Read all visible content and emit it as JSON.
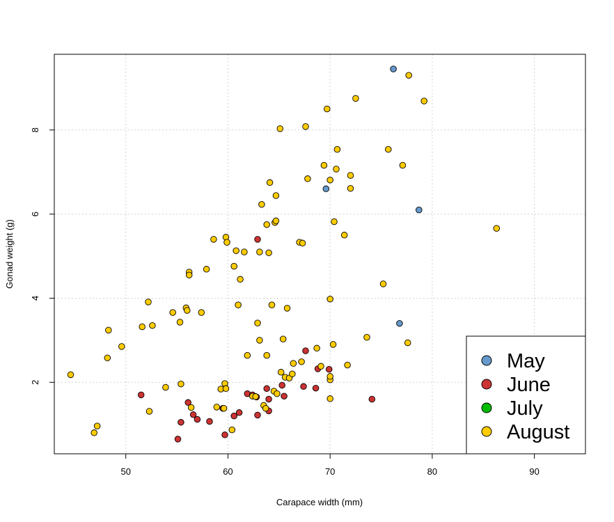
{
  "chart_data": {
    "type": "scatter",
    "title": "",
    "xlabel": "Carapace width (mm)",
    "ylabel": "Gonad weight (g)",
    "xlim": [
      43,
      95
    ],
    "ylim": [
      0.3,
      9.8
    ],
    "xticks": [
      50,
      60,
      70,
      80,
      90
    ],
    "yticks": [
      2,
      4,
      6,
      8
    ],
    "grid": true,
    "legend_position": "bottom-right",
    "series": [
      {
        "name": "May",
        "color": "#6699cc",
        "points": [
          [
            76.2,
            9.45
          ],
          [
            69.6,
            6.6
          ],
          [
            78.7,
            6.1
          ],
          [
            76.8,
            3.4
          ]
        ]
      },
      {
        "name": "June",
        "color": "#cc3333",
        "points": [
          [
            51.5,
            1.7
          ],
          [
            55.1,
            0.65
          ],
          [
            55.4,
            1.05
          ],
          [
            56.1,
            1.52
          ],
          [
            56.6,
            1.23
          ],
          [
            57.0,
            1.12
          ],
          [
            58.2,
            1.07
          ],
          [
            59.5,
            1.38
          ],
          [
            59.7,
            0.75
          ],
          [
            60.6,
            1.2
          ],
          [
            61.1,
            1.28
          ],
          [
            61.9,
            1.73
          ],
          [
            62.4,
            1.7
          ],
          [
            62.8,
            1.65
          ],
          [
            62.9,
            5.4
          ],
          [
            62.9,
            1.22
          ],
          [
            63.8,
            1.85
          ],
          [
            64.0,
            1.6
          ],
          [
            64.0,
            1.32
          ],
          [
            65.3,
            1.93
          ],
          [
            65.5,
            1.67
          ],
          [
            67.4,
            1.9
          ],
          [
            67.6,
            2.75
          ],
          [
            68.6,
            1.86
          ],
          [
            68.8,
            2.32
          ],
          [
            69.9,
            2.31
          ],
          [
            74.1,
            1.6
          ]
        ]
      },
      {
        "name": "July",
        "color": "#00bb00",
        "points": []
      },
      {
        "name": "August",
        "color": "#ffcc00",
        "points": [
          [
            44.6,
            2.18
          ],
          [
            46.9,
            0.8
          ],
          [
            47.2,
            0.96
          ],
          [
            48.2,
            2.58
          ],
          [
            48.3,
            3.24
          ],
          [
            49.6,
            2.85
          ],
          [
            51.6,
            3.32
          ],
          [
            52.2,
            3.91
          ],
          [
            52.3,
            1.31
          ],
          [
            52.6,
            3.35
          ],
          [
            53.9,
            1.88
          ],
          [
            54.6,
            3.66
          ],
          [
            55.3,
            3.43
          ],
          [
            55.4,
            1.96
          ],
          [
            55.9,
            3.77
          ],
          [
            56.0,
            3.71
          ],
          [
            56.2,
            4.62
          ],
          [
            56.2,
            4.55
          ],
          [
            56.4,
            1.4
          ],
          [
            57.4,
            3.66
          ],
          [
            57.9,
            4.69
          ],
          [
            58.6,
            5.4
          ],
          [
            58.9,
            1.41
          ],
          [
            59.3,
            1.84
          ],
          [
            59.6,
            1.38
          ],
          [
            59.7,
            1.97
          ],
          [
            59.8,
            1.85
          ],
          [
            59.8,
            5.45
          ],
          [
            59.9,
            5.33
          ],
          [
            60.4,
            0.87
          ],
          [
            60.6,
            4.76
          ],
          [
            60.8,
            5.13
          ],
          [
            61.0,
            3.84
          ],
          [
            61.2,
            4.45
          ],
          [
            61.6,
            5.1
          ],
          [
            61.9,
            2.64
          ],
          [
            62.4,
            1.67
          ],
          [
            62.7,
            1.66
          ],
          [
            62.9,
            3.41
          ],
          [
            63.1,
            5.1
          ],
          [
            63.1,
            3.0
          ],
          [
            63.3,
            6.23
          ],
          [
            63.5,
            1.45
          ],
          [
            63.7,
            1.38
          ],
          [
            63.8,
            2.64
          ],
          [
            63.8,
            5.75
          ],
          [
            64.0,
            5.08
          ],
          [
            64.1,
            6.75
          ],
          [
            64.3,
            3.84
          ],
          [
            64.5,
            1.79
          ],
          [
            64.6,
            5.8
          ],
          [
            64.7,
            5.84
          ],
          [
            64.7,
            6.44
          ],
          [
            64.8,
            1.73
          ],
          [
            65.1,
            8.03
          ],
          [
            65.2,
            2.24
          ],
          [
            65.4,
            3.03
          ],
          [
            65.6,
            2.12
          ],
          [
            65.8,
            3.76
          ],
          [
            66.0,
            2.1
          ],
          [
            66.3,
            2.2
          ],
          [
            66.4,
            2.45
          ],
          [
            67.0,
            5.33
          ],
          [
            67.2,
            2.49
          ],
          [
            67.3,
            5.31
          ],
          [
            67.6,
            8.08
          ],
          [
            67.8,
            6.84
          ],
          [
            68.7,
            2.81
          ],
          [
            69.1,
            2.38
          ],
          [
            69.4,
            7.16
          ],
          [
            69.7,
            8.5
          ],
          [
            70.0,
            2.06
          ],
          [
            70.0,
            2.14
          ],
          [
            70.0,
            6.81
          ],
          [
            70.0,
            3.98
          ],
          [
            70.0,
            1.61
          ],
          [
            70.3,
            2.9
          ],
          [
            70.4,
            5.82
          ],
          [
            70.6,
            7.07
          ],
          [
            70.7,
            7.54
          ],
          [
            71.4,
            5.5
          ],
          [
            71.7,
            2.41
          ],
          [
            72.0,
            6.92
          ],
          [
            72.0,
            6.61
          ],
          [
            72.5,
            8.75
          ],
          [
            73.6,
            3.07
          ],
          [
            75.2,
            4.34
          ],
          [
            75.7,
            7.54
          ],
          [
            77.1,
            7.16
          ],
          [
            77.6,
            2.94
          ],
          [
            77.7,
            9.3
          ],
          [
            79.2,
            8.69
          ],
          [
            86.3,
            5.66
          ]
        ]
      }
    ]
  }
}
